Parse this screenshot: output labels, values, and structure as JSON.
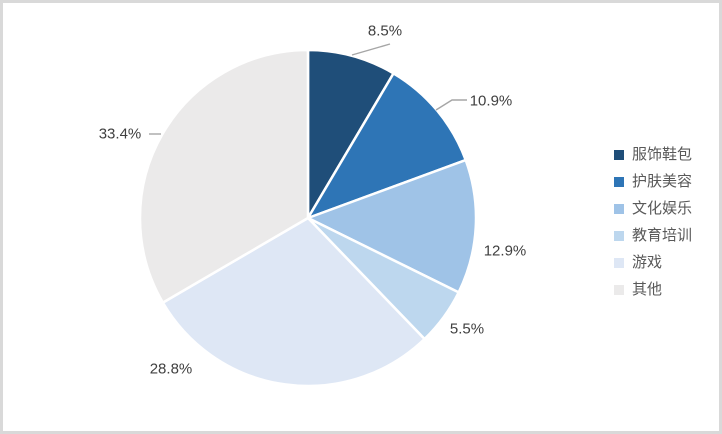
{
  "chart_data": {
    "type": "pie",
    "title": "",
    "categories": [
      "服饰鞋包",
      "护肤美容",
      "文化娱乐",
      "教育培训",
      "游戏",
      "其他"
    ],
    "values": [
      8.5,
      10.9,
      12.9,
      5.5,
      28.8,
      33.4
    ],
    "display_labels": [
      "8.5%",
      "10.9%",
      "12.9%",
      "5.5%",
      "28.8%",
      "33.4%"
    ],
    "colors": [
      "#1F4E79",
      "#2E75B6",
      "#9FC3E7",
      "#BDD7EE",
      "#DEE7F5",
      "#EBEAEA"
    ],
    "total": 100,
    "start_angle_deg": 0,
    "direction": "clockwise",
    "legend_position": "right",
    "label_color": "#404040",
    "legend_text_color": "#595959",
    "leader_line_color": "#A6A6A6",
    "slice_border_color": "#FFFFFF",
    "frame_border_color": "#D9D9D9",
    "background_color": "#FFFFFF"
  }
}
